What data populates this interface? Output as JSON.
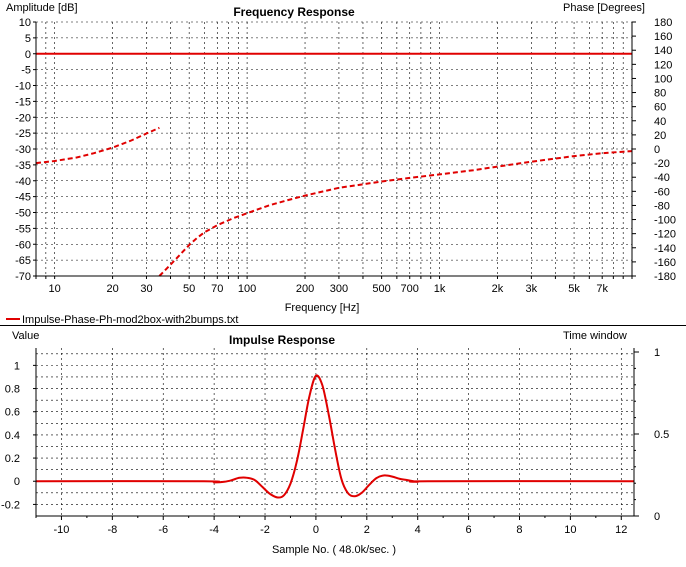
{
  "chart_data": [
    {
      "type": "line",
      "title": "Frequency Response",
      "xlabel": "Frequency [Hz]",
      "ylabel": "Amplitude [dB]",
      "y2label": "Phase [Degrees]",
      "xscale": "log",
      "xlim": [
        8,
        10000
      ],
      "ylim": [
        -70,
        10
      ],
      "y2lim": [
        -180,
        180
      ],
      "grid": true,
      "x_ticks": [
        {
          "v": 10,
          "label": "10"
        },
        {
          "v": 20,
          "label": "20"
        },
        {
          "v": 30,
          "label": "30"
        },
        {
          "v": 50,
          "label": "50"
        },
        {
          "v": 70,
          "label": "70"
        },
        {
          "v": 100,
          "label": "100"
        },
        {
          "v": 200,
          "label": "200"
        },
        {
          "v": 300,
          "label": "300"
        },
        {
          "v": 500,
          "label": "500"
        },
        {
          "v": 700,
          "label": "700"
        },
        {
          "v": 1000,
          "label": "1k"
        },
        {
          "v": 2000,
          "label": "2k"
        },
        {
          "v": 3000,
          "label": "3k"
        },
        {
          "v": 5000,
          "label": "5k"
        },
        {
          "v": 7000,
          "label": "7k"
        }
      ],
      "y_ticks": [
        10,
        5,
        0,
        -5,
        -10,
        -15,
        -20,
        -25,
        -30,
        -35,
        -40,
        -45,
        -50,
        -55,
        -60,
        -65,
        -70
      ],
      "y2_ticks": [
        180,
        160,
        140,
        120,
        100,
        80,
        60,
        40,
        20,
        0,
        -20,
        -40,
        -60,
        -80,
        -100,
        -120,
        -140,
        -160,
        -180
      ],
      "legend": {
        "placement": "bottom-left",
        "text": "Impulse-Phase-Ph-mod2box-with2bumps.txt",
        "color": "#e00000"
      },
      "series": [
        {
          "kind": "amplitude",
          "style": "solid",
          "x": [
            8,
            10000
          ],
          "y": [
            0,
            0
          ]
        },
        {
          "kind": "phase",
          "style": "dashed",
          "segments": [
            {
              "x": [
                8,
                10,
                13,
                16,
                20,
                25,
                30,
                35
              ],
              "y": [
                -20,
                -17,
                -12,
                -6,
                2,
                12,
                22,
                30
              ]
            },
            {
              "x": [
                35,
                40,
                50,
                55,
                60,
                70,
                85,
                100,
                130,
                160,
                200,
                250,
                300,
                400,
                500,
                700,
                1000,
                1500,
                2000,
                3000,
                5000,
                7000,
                10000
              ],
              "y": [
                -180,
                -164,
                -136,
                -126,
                -118,
                -108,
                -98,
                -91,
                -80,
                -73,
                -66,
                -60,
                -55,
                -50,
                -46,
                -41,
                -36,
                -30,
                -25,
                -18,
                -10,
                -6,
                -3
              ]
            }
          ]
        }
      ],
      "color": "#e00000"
    },
    {
      "type": "line",
      "title": "Impulse Response",
      "xlabel": "Sample No. ( 48.0k/sec. )",
      "ylabel": "Value",
      "y2label": "Time window",
      "xlim": [
        -11,
        12.5
      ],
      "ylim": [
        -0.3,
        1.15
      ],
      "y2lim": [
        0,
        1
      ],
      "grid": true,
      "x_ticks": [
        -10,
        -8,
        -6,
        -4,
        -2,
        0,
        2,
        4,
        6,
        8,
        10,
        12
      ],
      "y_ticks": [
        {
          "v": 1,
          "label": "1"
        },
        {
          "v": 0.8,
          "label": "0.8"
        },
        {
          "v": 0.6,
          "label": "0.6"
        },
        {
          "v": 0.4,
          "label": "0.4"
        },
        {
          "v": 0.2,
          "label": "0.2"
        },
        {
          "v": 0,
          "label": "0"
        },
        {
          "v": -0.2,
          "label": "-0.2"
        }
      ],
      "y2_ticks": [
        {
          "v": 1,
          "label": "1"
        },
        {
          "v": 0.5,
          "label": "0.5"
        },
        {
          "v": 0,
          "label": "0"
        }
      ],
      "series": [
        {
          "x": [
            -11,
            -4.4,
            -4,
            -3.6,
            -3.3,
            -3,
            -2.7,
            -2.4,
            -2.1,
            -1.8,
            -1.5,
            -1.25,
            -1,
            -0.75,
            -0.5,
            -0.25,
            0,
            0.25,
            0.5,
            0.75,
            1,
            1.25,
            1.5,
            1.8,
            2.1,
            2.4,
            2.7,
            3,
            3.3,
            3.6,
            4,
            4.4,
            12.5
          ],
          "y": [
            0,
            0,
            -0.01,
            -0.005,
            0.01,
            0.03,
            0.03,
            0.01,
            -0.05,
            -0.11,
            -0.14,
            -0.12,
            -0.02,
            0.17,
            0.45,
            0.74,
            0.91,
            0.83,
            0.58,
            0.28,
            0.02,
            -0.1,
            -0.13,
            -0.1,
            -0.03,
            0.03,
            0.05,
            0.04,
            0.02,
            0.01,
            -0.005,
            0,
            0
          ]
        }
      ],
      "color": "#e00000"
    }
  ]
}
